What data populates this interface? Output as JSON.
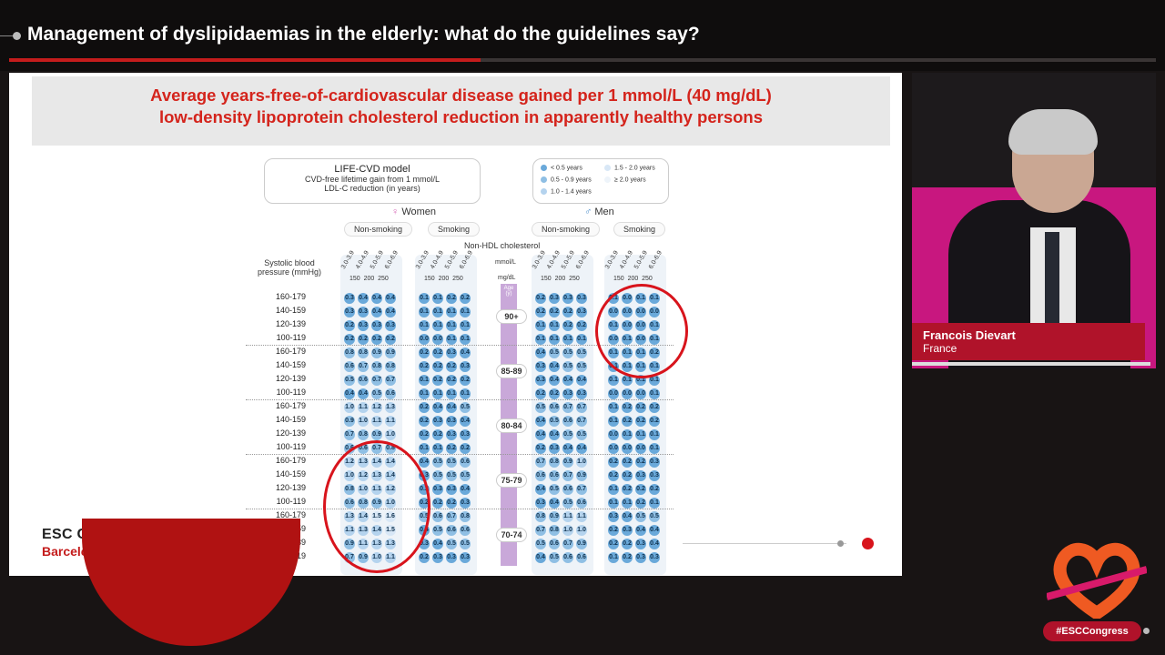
{
  "session_title": "Management of dyslipidaemias in the elderly: what do the guidelines say?",
  "slide": {
    "title_line1": "Average years-free-of-cardiovascular disease gained per 1 mmol/L (40 mg/dL)",
    "title_line2": "low-density lipoprotein cholesterol reduction in apparently healthy persons",
    "model_title": "LIFE-CVD model",
    "model_sub1": "CVD-free lifetime gain from 1 mmol/L",
    "model_sub2": "LDL-C reduction (in years)",
    "legend": [
      "< 0.5 years",
      "0.5 - 0.9 years",
      "1.0 - 1.4 years",
      "1.5 - 2.0 years",
      "≥ 2.0 years"
    ],
    "women": "Women",
    "men": "Men",
    "non_smoking": "Non-smoking",
    "smoking": "Smoking",
    "non_hdl": "Non-HDL cholesterol",
    "sbp_label1": "Systolic blood",
    "sbp_label2": "pressure (mmHg)",
    "mmol_label": "mmol/L",
    "mgdl_label": "mg/dL",
    "col_mmol": [
      "3.0-3.9",
      "4.0-4.9",
      "5.0-5.9",
      "6.0-6.9"
    ],
    "col_mgdl": "150  200  250",
    "age_label": "Age (y)",
    "ages": [
      "90+",
      "85-89",
      "80-84",
      "75-79",
      "70-74"
    ],
    "bp_rows": [
      "160-179",
      "140-159",
      "120-139",
      "100-119"
    ],
    "women_nonsmoking": [
      [
        "0.3",
        "0.4",
        "0.4",
        "0.4"
      ],
      [
        "0.3",
        "0.3",
        "0.4",
        "0.4"
      ],
      [
        "0.2",
        "0.3",
        "0.3",
        "0.3"
      ],
      [
        "0.2",
        "0.2",
        "0.2",
        "0.2"
      ],
      [
        "0.8",
        "0.8",
        "0.9",
        "0.9"
      ],
      [
        "0.6",
        "0.7",
        "0.8",
        "0.8"
      ],
      [
        "0.5",
        "0.6",
        "0.7",
        "0.7"
      ],
      [
        "0.4",
        "0.4",
        "0.5",
        "0.6"
      ],
      [
        "1.0",
        "1.1",
        "1.2",
        "1.3"
      ],
      [
        "0.9",
        "1.0",
        "1.1",
        "1.1"
      ],
      [
        "0.7",
        "0.8",
        "0.9",
        "1.0"
      ],
      [
        "0.6",
        "0.6",
        "0.7",
        "0.8"
      ],
      [
        "1.2",
        "1.3",
        "1.4",
        "1.4"
      ],
      [
        "1.0",
        "1.2",
        "1.3",
        "1.4"
      ],
      [
        "0.8",
        "1.0",
        "1.1",
        "1.2"
      ],
      [
        "0.6",
        "0.8",
        "0.9",
        "1.0"
      ],
      [
        "1.3",
        "1.4",
        "1.5",
        "1.6"
      ],
      [
        "1.1",
        "1.3",
        "1.4",
        "1.5"
      ],
      [
        "0.9",
        "1.1",
        "1.3",
        "1.3"
      ],
      [
        "0.7",
        "0.9",
        "1.0",
        "1.1"
      ]
    ],
    "women_smoking": [
      [
        "0.1",
        "0.1",
        "0.2",
        "0.2"
      ],
      [
        "0.1",
        "0.1",
        "0.1",
        "0.1"
      ],
      [
        "0.1",
        "0.1",
        "0.1",
        "0.1"
      ],
      [
        "0.0",
        "0.0",
        "0.1",
        "0.1"
      ],
      [
        "0.2",
        "0.2",
        "0.3",
        "0.4"
      ],
      [
        "0.2",
        "0.2",
        "0.2",
        "0.3"
      ],
      [
        "0.1",
        "0.2",
        "0.2",
        "0.2"
      ],
      [
        "0.1",
        "0.1",
        "0.1",
        "0.1"
      ],
      [
        "0.2",
        "0.4",
        "0.4",
        "0.5"
      ],
      [
        "0.2",
        "0.3",
        "0.3",
        "0.4"
      ],
      [
        "0.2",
        "0.2",
        "0.3",
        "0.3"
      ],
      [
        "0.1",
        "0.1",
        "0.2",
        "0.2"
      ],
      [
        "0.4",
        "0.5",
        "0.5",
        "0.6"
      ],
      [
        "0.3",
        "0.5",
        "0.5",
        "0.5"
      ],
      [
        "0.2",
        "0.3",
        "0.3",
        "0.4"
      ],
      [
        "0.2",
        "0.2",
        "0.2",
        "0.3"
      ],
      [
        "0.5",
        "0.6",
        "0.7",
        "0.8"
      ],
      [
        "0.4",
        "0.5",
        "0.6",
        "0.6"
      ],
      [
        "0.3",
        "0.4",
        "0.5",
        "0.5"
      ],
      [
        "0.2",
        "0.3",
        "0.3",
        "0.3"
      ]
    ],
    "men_nonsmoking": [
      [
        "0.2",
        "0.3",
        "0.3",
        "0.3"
      ],
      [
        "0.2",
        "0.2",
        "0.2",
        "0.3"
      ],
      [
        "0.1",
        "0.1",
        "0.2",
        "0.2"
      ],
      [
        "0.1",
        "0.1",
        "0.1",
        "0.1"
      ],
      [
        "0.4",
        "0.5",
        "0.5",
        "0.5"
      ],
      [
        "0.3",
        "0.4",
        "0.5",
        "0.5"
      ],
      [
        "0.3",
        "0.4",
        "0.4",
        "0.4"
      ],
      [
        "0.2",
        "0.2",
        "0.3",
        "0.3"
      ],
      [
        "0.5",
        "0.6",
        "0.7",
        "0.7"
      ],
      [
        "0.4",
        "0.5",
        "0.6",
        "0.7"
      ],
      [
        "0.4",
        "0.4",
        "0.5",
        "0.5"
      ],
      [
        "0.2",
        "0.3",
        "0.4",
        "0.4"
      ],
      [
        "0.7",
        "0.8",
        "0.9",
        "1.0"
      ],
      [
        "0.6",
        "0.6",
        "0.7",
        "0.9"
      ],
      [
        "0.4",
        "0.5",
        "0.6",
        "0.7"
      ],
      [
        "0.3",
        "0.4",
        "0.5",
        "0.6"
      ],
      [
        "0.8",
        "0.9",
        "1.1",
        "1.1"
      ],
      [
        "0.7",
        "0.8",
        "1.0",
        "1.0"
      ],
      [
        "0.5",
        "0.6",
        "0.7",
        "0.9"
      ],
      [
        "0.4",
        "0.5",
        "0.6",
        "0.6"
      ]
    ],
    "men_smoking": [
      [
        "0.1",
        "0.0",
        "0.1",
        "0.1"
      ],
      [
        "0.0",
        "0.0",
        "0.0",
        "0.0"
      ],
      [
        "0.1",
        "0.0",
        "0.0",
        "0.1"
      ],
      [
        "0.0",
        "0.1",
        "0.0",
        "0.1"
      ],
      [
        "0.1",
        "0.1",
        "0.1",
        "0.2"
      ],
      [
        "0.1",
        "0.1",
        "0.1",
        "0.1"
      ],
      [
        "0.1",
        "0.1",
        "0.1",
        "0.1"
      ],
      [
        "0.0",
        "0.0",
        "0.0",
        "0.1"
      ],
      [
        "0.1",
        "0.2",
        "0.2",
        "0.2"
      ],
      [
        "0.1",
        "0.2",
        "0.2",
        "0.2"
      ],
      [
        "0.0",
        "0.1",
        "0.1",
        "0.1"
      ],
      [
        "0.0",
        "0.0",
        "0.0",
        "0.1"
      ],
      [
        "0.2",
        "0.2",
        "0.2",
        "0.3"
      ],
      [
        "0.2",
        "0.2",
        "0.3",
        "0.3"
      ],
      [
        "0.1",
        "0.2",
        "0.2",
        "0.2"
      ],
      [
        "0.1",
        "0.1",
        "0.2",
        "0.1"
      ],
      [
        "0.3",
        "0.4",
        "0.5",
        "0.5"
      ],
      [
        "0.2",
        "0.3",
        "0.4",
        "0.4"
      ],
      [
        "0.2",
        "0.2",
        "0.3",
        "0.4"
      ],
      [
        "0.1",
        "0.2",
        "0.3",
        "0.3"
      ]
    ],
    "congress_name": "ESC CONGRESS 2022",
    "congress_place": "Barcelona & Online"
  },
  "speaker": {
    "name": "Francois Dievart",
    "country": "France"
  },
  "hashtag": "#ESCCongress",
  "colors": {
    "accent_red": "#c41c1c",
    "speaker_bar": "#b0132a",
    "cell_blue": "#6aa9da"
  }
}
